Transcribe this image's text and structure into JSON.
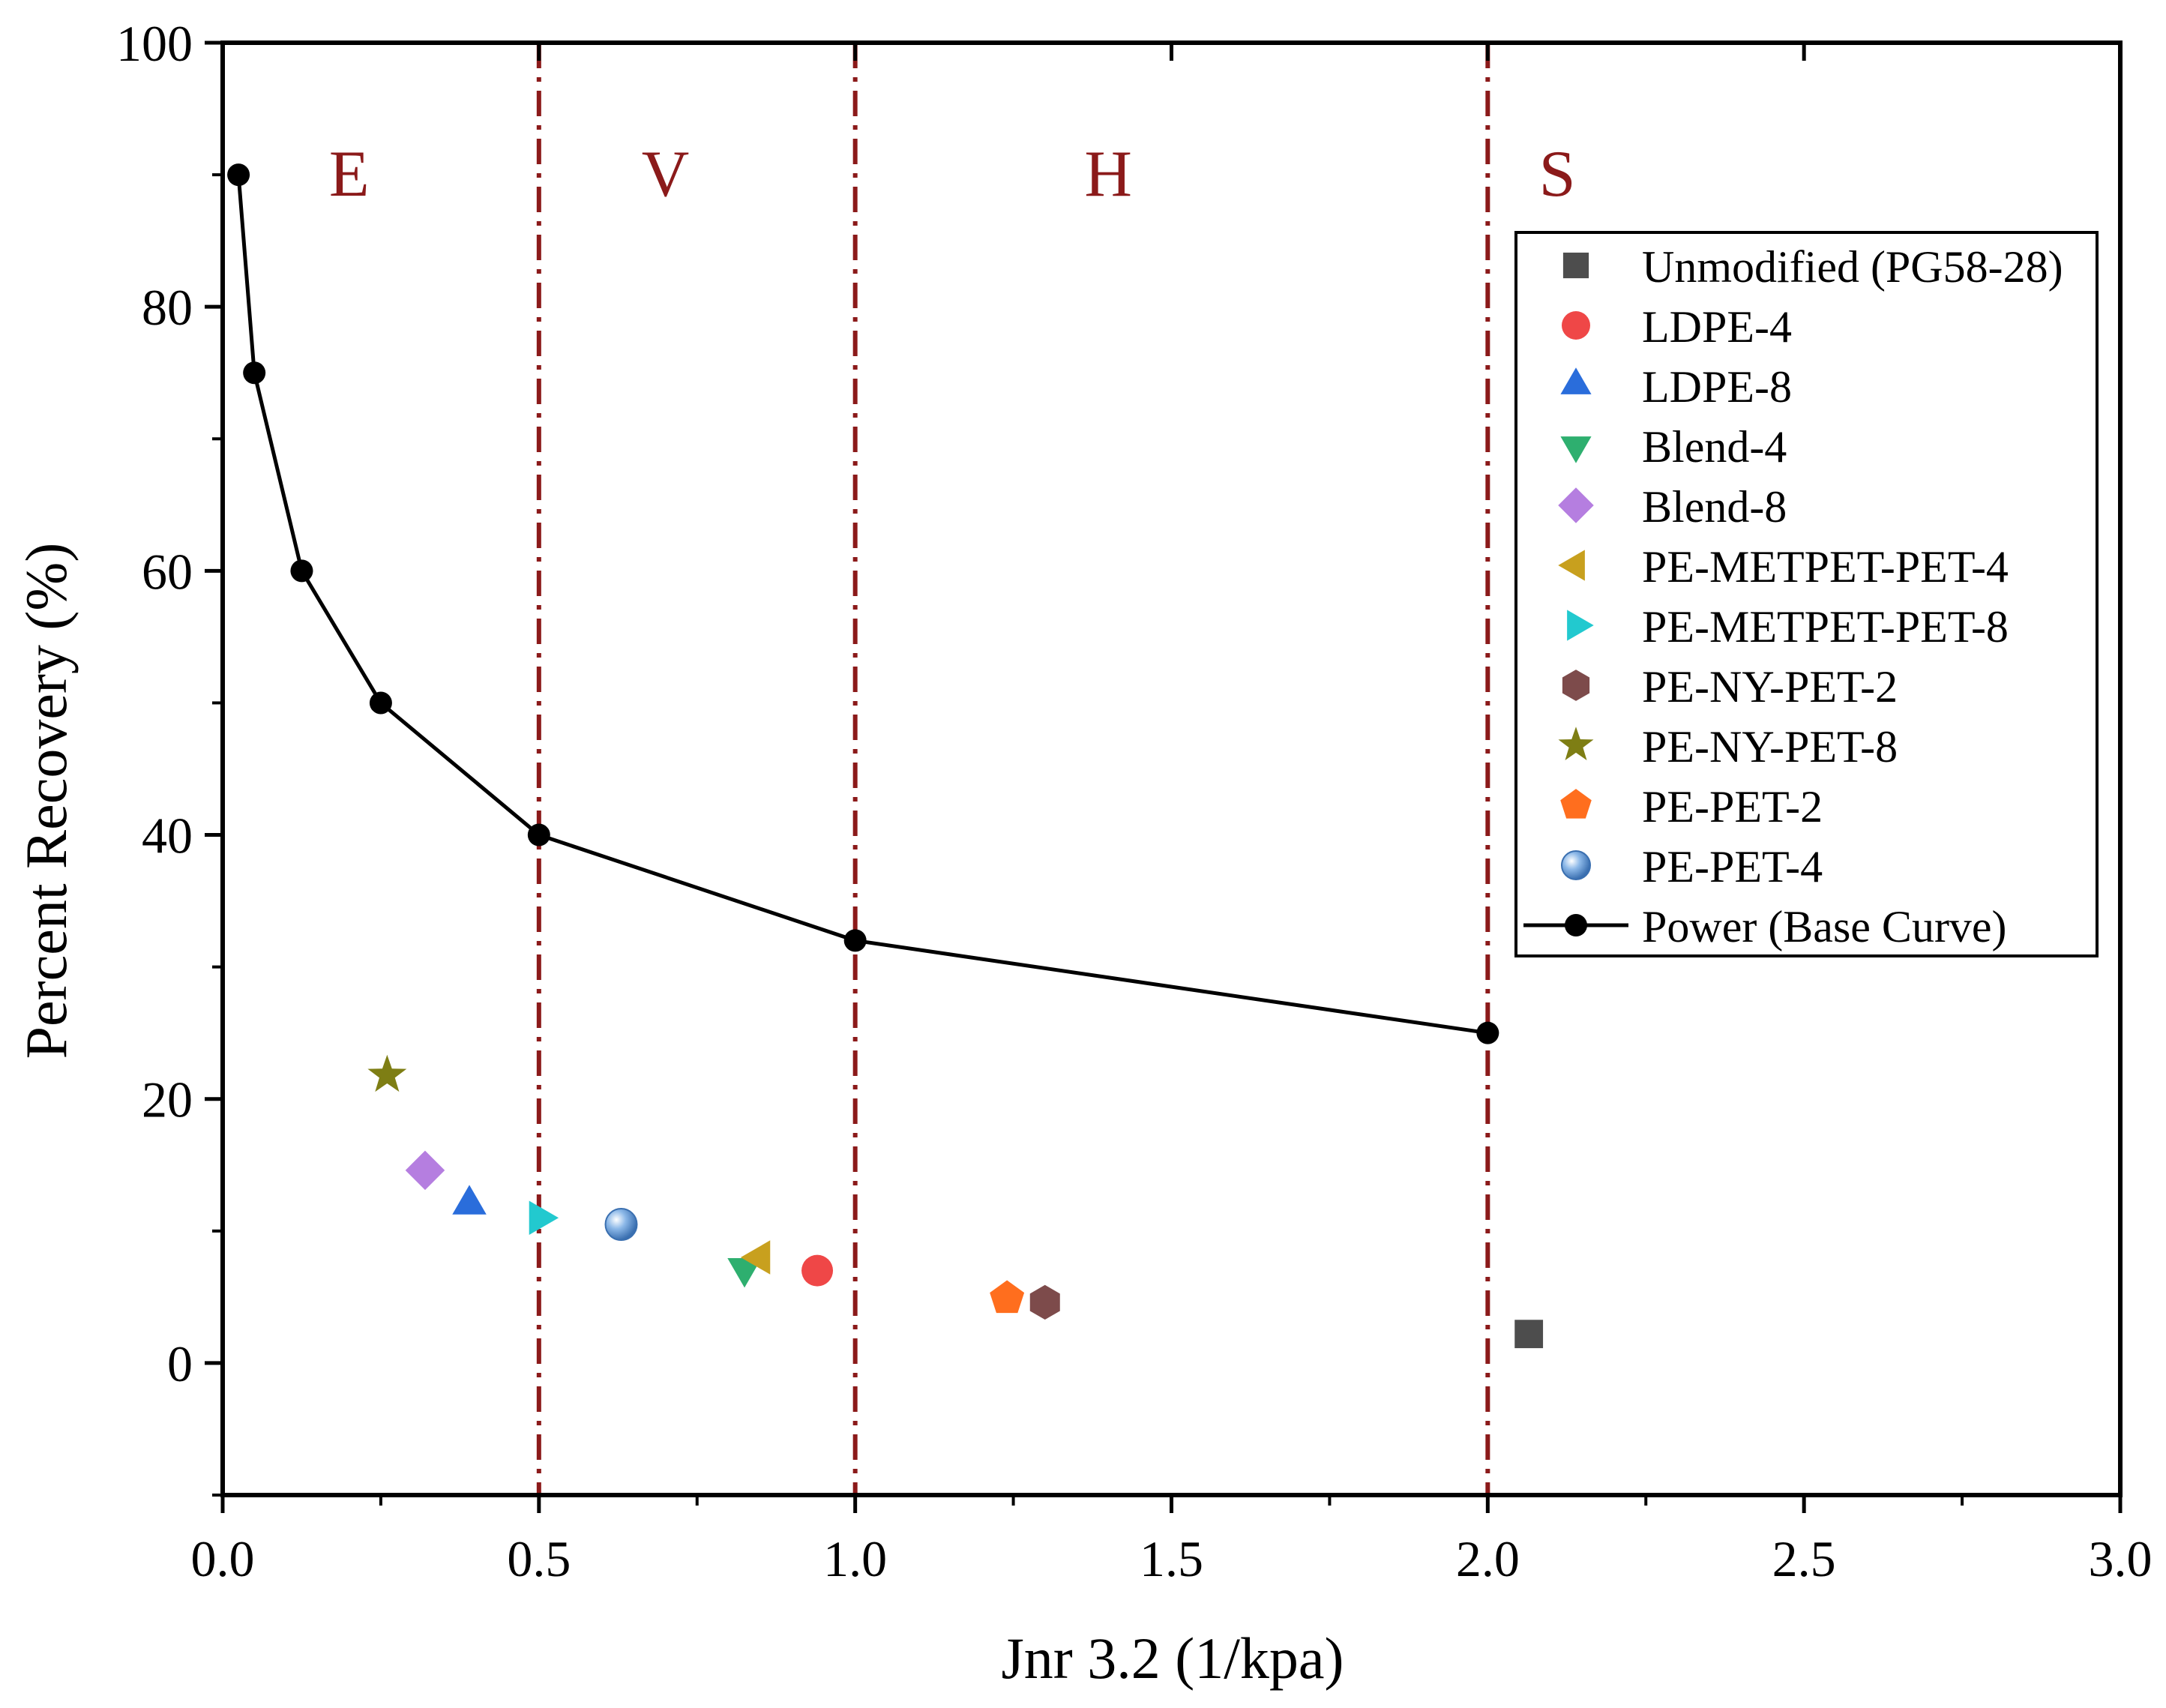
{
  "chart_data": {
    "type": "scatter",
    "title": "",
    "xlabel": "Jnr 3.2 (1/kpa)",
    "ylabel": "Percent Recovery (%)",
    "xlim": [
      0.0,
      3.0
    ],
    "ylim": [
      -10,
      100
    ],
    "x_ticks": [
      0.0,
      0.5,
      1.0,
      1.5,
      2.0,
      2.5,
      3.0
    ],
    "x_tick_labels": [
      "0.0",
      "0.5",
      "1.0",
      "1.5",
      "2.0",
      "2.5",
      "3.0"
    ],
    "y_ticks": [
      0,
      20,
      40,
      60,
      80,
      100
    ],
    "y_tick_labels": [
      "0",
      "20",
      "40",
      "60",
      "80",
      "100"
    ],
    "grid": false,
    "legend_position": "top-right",
    "zone_lines": {
      "x": [
        0.5,
        1.0,
        2.0
      ],
      "color": "#8B1A1A",
      "style": "dash-dot"
    },
    "zone_labels": [
      {
        "label": "E",
        "x": 0.2,
        "y": 90
      },
      {
        "label": "V",
        "x": 0.7,
        "y": 90
      },
      {
        "label": "H",
        "x": 1.4,
        "y": 90
      },
      {
        "label": "S",
        "x": 2.11,
        "y": 90
      }
    ],
    "zone_label_color": "#8B1A1A",
    "series": [
      {
        "name": "Unmodified (PG58-28)",
        "marker": "square",
        "color": "#4D4D4D",
        "x": 2.065,
        "y": 2.2
      },
      {
        "name": "LDPE-4",
        "marker": "circle",
        "color": "#EF4747",
        "x": 0.94,
        "y": 7.0
      },
      {
        "name": "LDPE-8",
        "marker": "triangle-up",
        "color": "#2A6DDB",
        "x": 0.39,
        "y": 12.0
      },
      {
        "name": "Blend-4",
        "marker": "triangle-down",
        "color": "#2EAF6F",
        "x": 0.825,
        "y": 7.2
      },
      {
        "name": "Blend-8",
        "marker": "diamond",
        "color": "#B57EE0",
        "x": 0.32,
        "y": 14.6
      },
      {
        "name": "PE-METPET-PET-4",
        "marker": "triangle-left",
        "color": "#C8A01E",
        "x": 0.85,
        "y": 8.0
      },
      {
        "name": "PE-METPET-PET-8",
        "marker": "triangle-right",
        "color": "#22C9CF",
        "x": 0.5,
        "y": 11.0
      },
      {
        "name": "PE-NY-PET-2",
        "marker": "hexagon",
        "color": "#7D4B4B",
        "x": 1.3,
        "y": 4.6
      },
      {
        "name": "PE-NY-PET-8",
        "marker": "star",
        "color": "#7E7E14",
        "x": 0.26,
        "y": 21.8
      },
      {
        "name": "PE-PET-2",
        "marker": "pentagon",
        "color": "#FF6E1E",
        "x": 1.24,
        "y": 4.9
      },
      {
        "name": "PE-PET-4",
        "marker": "sphere",
        "color": "#6C9FD8",
        "x": 0.63,
        "y": 10.5
      }
    ],
    "line_series": {
      "name": "Power (Base Curve)",
      "color": "#000000",
      "x": [
        0.025,
        0.05,
        0.125,
        0.25,
        0.5,
        1.0,
        2.0
      ],
      "y": [
        90,
        75,
        60,
        50,
        40,
        32,
        25
      ]
    }
  }
}
